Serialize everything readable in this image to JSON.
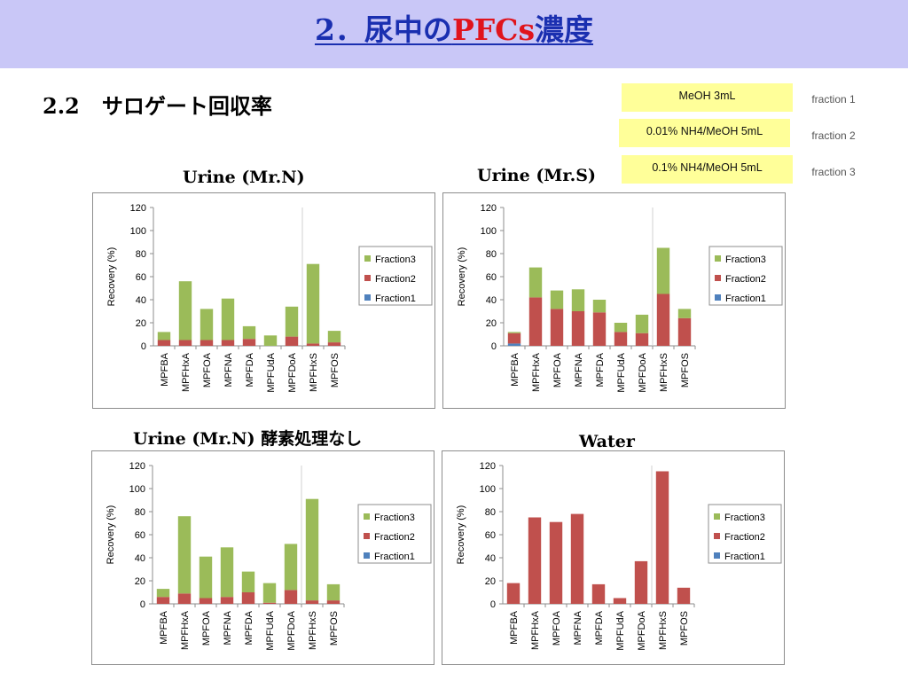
{
  "header": {
    "title_prefix": "2．尿中の",
    "title_highlight": "PFCs",
    "title_suffix": "濃度"
  },
  "section": {
    "number": "2.2",
    "title": "サロゲート回収率"
  },
  "fraction_legend": [
    {
      "box": "MeOH 3mL",
      "label": "fraction 1"
    },
    {
      "box": "0.01% NH4/MeOH 5mL",
      "label": "fraction 2"
    },
    {
      "box": "0.1% NH4/MeOH 5mL",
      "label": "fraction 3"
    }
  ],
  "colors": {
    "fraction1": "#4f81bd",
    "fraction2": "#c0504d",
    "fraction3": "#9bbb59",
    "header_bg": "#c9c7f7",
    "title": "#1a2fb0",
    "highlight": "#e0141c",
    "legend_box": "#ffff99"
  },
  "chart_data": [
    {
      "caption": "Urine (Mr.N)",
      "type": "bar",
      "stacked": true,
      "ylabel": "Recovery (%)",
      "ylim": [
        0,
        120
      ],
      "yticks": [
        "0",
        "20",
        "40",
        "60",
        "80",
        "100",
        "120"
      ],
      "categories": [
        "MPFBA",
        "MPFHxA",
        "MPFOA",
        "MPFNA",
        "MPFDA",
        "MPFUdA",
        "MPFDoA",
        "MPFHxS",
        "MPFOS"
      ],
      "series": [
        {
          "name": "Fraction1",
          "values": [
            0,
            0,
            0,
            0,
            0,
            0,
            0,
            0,
            0
          ]
        },
        {
          "name": "Fraction2",
          "values": [
            5,
            5,
            5,
            5,
            6,
            0,
            8,
            2,
            3
          ]
        },
        {
          "name": "Fraction3",
          "values": [
            7,
            51,
            27,
            36,
            11,
            9,
            26,
            69,
            10
          ]
        }
      ],
      "legend_order": [
        "Fraction3",
        "Fraction2",
        "Fraction1"
      ]
    },
    {
      "caption": "Urine (Mr.S)",
      "type": "bar",
      "stacked": true,
      "ylabel": "Recovery (%)",
      "ylim": [
        0,
        120
      ],
      "yticks": [
        "0",
        "20",
        "40",
        "60",
        "80",
        "100",
        "120"
      ],
      "categories": [
        "MPFBA",
        "MPFHxA",
        "MPFOA",
        "MPFNA",
        "MPFDA",
        "MPFUdA",
        "MPFDoA",
        "MPFHxS",
        "MPFOS"
      ],
      "series": [
        {
          "name": "Fraction1",
          "values": [
            2,
            0,
            0,
            0,
            0,
            0,
            0,
            0,
            0
          ]
        },
        {
          "name": "Fraction2",
          "values": [
            9,
            42,
            32,
            30,
            29,
            12,
            11,
            45,
            24
          ]
        },
        {
          "name": "Fraction3",
          "values": [
            1,
            26,
            16,
            19,
            11,
            8,
            16,
            40,
            8
          ]
        }
      ],
      "legend_order": [
        "Fraction3",
        "Fraction2",
        "Fraction1"
      ]
    },
    {
      "caption": "Urine (Mr.N) 酵素処理なし",
      "type": "bar",
      "stacked": true,
      "ylabel": "Recovery (%)",
      "ylim": [
        0,
        120
      ],
      "yticks": [
        "0",
        "20",
        "40",
        "60",
        "80",
        "100",
        "120"
      ],
      "categories": [
        "MPFBA",
        "MPFHxA",
        "MPFOA",
        "MPFNA",
        "MPFDA",
        "MPFUdA",
        "MPFDoA",
        "MPFHxS",
        "MPFOS"
      ],
      "series": [
        {
          "name": "Fraction1",
          "values": [
            0,
            0,
            0,
            0,
            0,
            0,
            0,
            0,
            0
          ]
        },
        {
          "name": "Fraction2",
          "values": [
            6,
            9,
            5,
            6,
            10,
            1,
            12,
            3,
            3
          ]
        },
        {
          "name": "Fraction3",
          "values": [
            7,
            67,
            36,
            43,
            18,
            17,
            40,
            88,
            14
          ]
        }
      ],
      "legend_order": [
        "Fraction3",
        "Fraction2",
        "Fraction1"
      ]
    },
    {
      "caption": "Water",
      "type": "bar",
      "stacked": true,
      "ylabel": "Recovery (%)",
      "ylim": [
        0,
        120
      ],
      "yticks": [
        "0",
        "20",
        "40",
        "60",
        "80",
        "100",
        "120"
      ],
      "categories": [
        "MPFBA",
        "MPFHxA",
        "MPFOA",
        "MPFNA",
        "MPFDA",
        "MPFUdA",
        "MPFDoA",
        "MPFHxS",
        "MPFOS"
      ],
      "series": [
        {
          "name": "Fraction1",
          "values": [
            0,
            0,
            0,
            0,
            0,
            0,
            0,
            0,
            0
          ]
        },
        {
          "name": "Fraction2",
          "values": [
            18,
            75,
            71,
            78,
            17,
            5,
            37,
            115,
            14
          ]
        },
        {
          "name": "Fraction3",
          "values": [
            0,
            0,
            0,
            0,
            0,
            0,
            0,
            0,
            0
          ]
        }
      ],
      "legend_order": [
        "Fraction3",
        "Fraction2",
        "Fraction1"
      ]
    }
  ]
}
